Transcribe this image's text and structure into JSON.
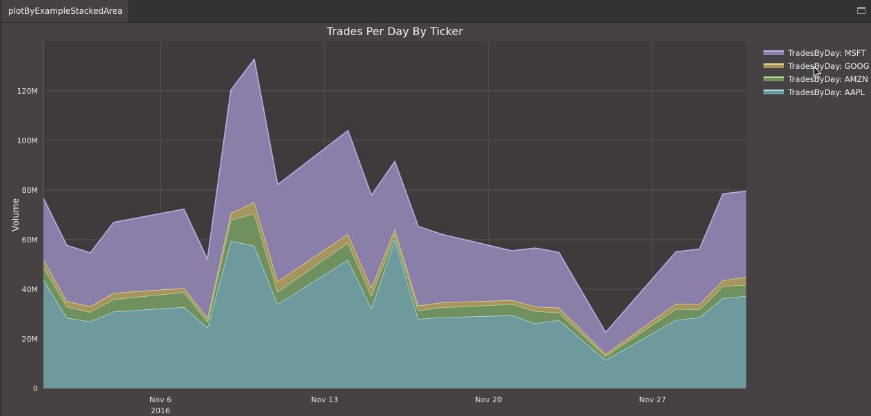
{
  "tab": {
    "label": "plotByExampleStackedArea"
  },
  "colors": {
    "plot_bg": "#3f3b3c",
    "grid": "#585455",
    "MSFT_fill": "#8a7fa8",
    "MSFT_line": "#b8b0e6",
    "GOOG_fill": "#a6955f",
    "GOOG_line": "#ead58a",
    "AMZN_fill": "#71905f",
    "AMZN_line": "#b4dc8f",
    "AAPL_fill": "#6e9a9e",
    "AAPL_line": "#a9e0e4"
  },
  "chart_data": {
    "type": "area",
    "stacked": true,
    "title": "Trades Per Day By Ticker",
    "xlabel": "",
    "ylabel": "Volume",
    "x": [
      "Nov 1",
      "Nov 2",
      "Nov 3",
      "Nov 4",
      "Nov 7",
      "Nov 8",
      "Nov 9",
      "Nov 10",
      "Nov 11",
      "Nov 14",
      "Nov 15",
      "Nov 16",
      "Nov 17",
      "Nov 18",
      "Nov 21",
      "Nov 22",
      "Nov 23",
      "Nov 25",
      "Nov 28",
      "Nov 29",
      "Nov 30",
      "Dec 1"
    ],
    "x_day": [
      1,
      2,
      3,
      4,
      7,
      8,
      9,
      10,
      11,
      14,
      15,
      16,
      17,
      18,
      21,
      22,
      23,
      25,
      28,
      29,
      30,
      31
    ],
    "x_range": [
      1,
      31
    ],
    "x_ticks": [
      {
        "day": 6,
        "label": "Nov 6",
        "sublabel": "2016"
      },
      {
        "day": 13,
        "label": "Nov 13",
        "sublabel": ""
      },
      {
        "day": 20,
        "label": "Nov 20",
        "sublabel": ""
      },
      {
        "day": 27,
        "label": "Nov 27",
        "sublabel": ""
      }
    ],
    "ylim": [
      0,
      140000000
    ],
    "y_ticks": [
      {
        "value": 0,
        "label": "0"
      },
      {
        "value": 20000000,
        "label": "20M"
      },
      {
        "value": 40000000,
        "label": "40M"
      },
      {
        "value": 60000000,
        "label": "60M"
      },
      {
        "value": 80000000,
        "label": "80M"
      },
      {
        "value": 100000000,
        "label": "100M"
      },
      {
        "value": 120000000,
        "label": "120M"
      }
    ],
    "series": [
      {
        "name": "TradesByDay: AAPL",
        "key": "AAPL",
        "values": [
          44000000,
          28500000,
          27000000,
          31000000,
          32800000,
          24500000,
          59500000,
          57500000,
          34000000,
          51800000,
          32300000,
          60000000,
          28000000,
          28700000,
          29500000,
          26200000,
          27600000,
          11500000,
          27600000,
          28600000,
          36400000,
          37300000
        ]
      },
      {
        "name": "TradesByDay: AMZN",
        "key": "AMZN",
        "values": [
          5000000,
          4500000,
          3800000,
          5000000,
          6000000,
          2500000,
          8500000,
          13000000,
          5000000,
          7000000,
          5000000,
          2000000,
          3500000,
          4000000,
          4500000,
          5000000,
          3000000,
          1500000,
          4500000,
          3200000,
          4800000,
          4500000
        ]
      },
      {
        "name": "TradesByDay: GOOG",
        "key": "GOOG",
        "values": [
          3000000,
          2200000,
          2300000,
          2500000,
          1700000,
          1500000,
          2700000,
          4600000,
          4200000,
          3500000,
          3300000,
          2300000,
          1900000,
          2000000,
          1600000,
          1800000,
          2000000,
          900000,
          2100000,
          2200000,
          2400000,
          3200000
        ]
      },
      {
        "name": "TradesByDay: MSFT",
        "key": "MSFT",
        "values": [
          24700000,
          22500000,
          21600000,
          28500000,
          31800000,
          23600000,
          49600000,
          57700000,
          39000000,
          41700000,
          37300000,
          27300000,
          32000000,
          27500000,
          19900000,
          23600000,
          22300000,
          8700000,
          20900000,
          22200000,
          34900000,
          34600000
        ]
      }
    ],
    "legend_order": [
      "MSFT",
      "GOOG",
      "AMZN",
      "AAPL"
    ],
    "legend_position": "top-right"
  }
}
